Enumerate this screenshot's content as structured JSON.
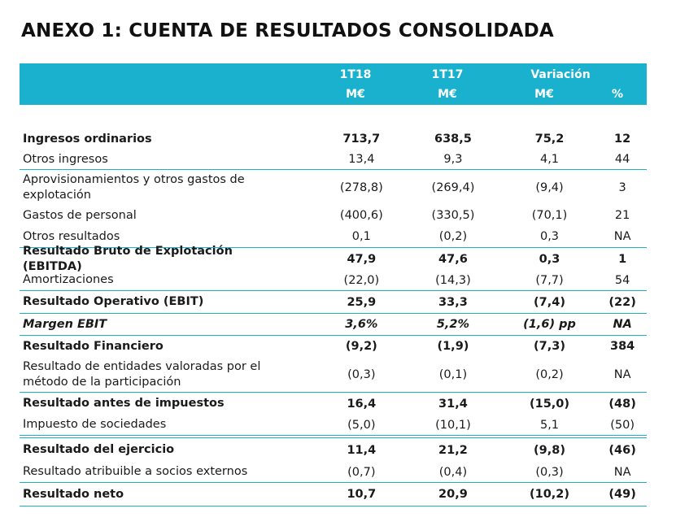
{
  "title": "ANEXO 1: CUENTA DE RESULTADOS CONSOLIDADA",
  "header": {
    "col1": "1T18",
    "col2": "1T17",
    "variation": "Variación",
    "unit1": "M€",
    "unit2": "M€",
    "unit3": "M€",
    "unit4": "%"
  },
  "rows": [
    {
      "label": "Ingresos ordinarios",
      "v1": "713,7",
      "v2": "638,5",
      "v3": "75,2",
      "v4": "12"
    },
    {
      "label": "Otros ingresos",
      "v1": "13,4",
      "v2": "9,3",
      "v3": "4,1",
      "v4": "44"
    },
    {
      "label": "Aprovisionamientos y otros gastos de explotación",
      "v1": "(278,8)",
      "v2": "(269,4)",
      "v3": "(9,4)",
      "v4": "3"
    },
    {
      "label": "Gastos de personal",
      "v1": "(400,6)",
      "v2": "(330,5)",
      "v3": "(70,1)",
      "v4": "21"
    },
    {
      "label": "Otros resultados",
      "v1": "0,1",
      "v2": "(0,2)",
      "v3": "0,3",
      "v4": "NA"
    },
    {
      "label": "Resultado Bruto de Explotación (EBITDA)",
      "v1": "47,9",
      "v2": "47,6",
      "v3": "0,3",
      "v4": "1"
    },
    {
      "label": "Amortizaciones",
      "v1": "(22,0)",
      "v2": "(14,3)",
      "v3": "(7,7)",
      "v4": "54"
    },
    {
      "label": "Resultado Operativo (EBIT)",
      "v1": "25,9",
      "v2": "33,3",
      "v3": "(7,4)",
      "v4": "(22)"
    },
    {
      "label": "Margen EBIT",
      "v1": "3,6%",
      "v2": "5,2%",
      "v3": "(1,6) pp",
      "v4": "NA"
    },
    {
      "label": "Resultado Financiero",
      "v1": "(9,2)",
      "v2": "(1,9)",
      "v3": "(7,3)",
      "v4": "384"
    },
    {
      "label": "Resultado de entidades valoradas por el método de la participación",
      "v1": "(0,3)",
      "v2": "(0,1)",
      "v3": "(0,2)",
      "v4": "NA"
    },
    {
      "label": "Resultado antes de impuestos",
      "v1": "16,4",
      "v2": "31,4",
      "v3": "(15,0)",
      "v4": "(48)"
    },
    {
      "label": "Impuesto de sociedades",
      "v1": "(5,0)",
      "v2": "(10,1)",
      "v3": "5,1",
      "v4": "(50)"
    },
    {
      "label": "Resultado del ejercicio",
      "v1": "11,4",
      "v2": "21,2",
      "v3": "(9,8)",
      "v4": "(46)"
    },
    {
      "label": "Resultado atribuible a socios externos",
      "v1": "(0,7)",
      "v2": "(0,4)",
      "v3": "(0,3)",
      "v4": "NA"
    },
    {
      "label": "Resultado neto",
      "v1": "10,7",
      "v2": "20,9",
      "v3": "(10,2)",
      "v4": "(49)"
    }
  ],
  "colors": {
    "accent": "#19b1cd"
  }
}
